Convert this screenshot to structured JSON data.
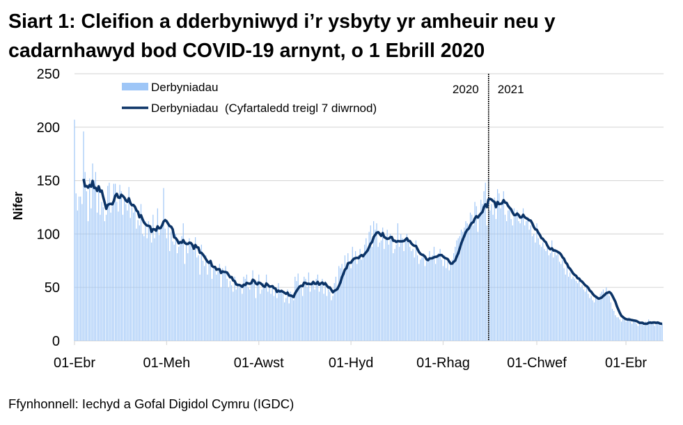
{
  "title_line1": "Siart 1: Cleifion a dderbyniwyd i’r ysbyty yr amheuir neu y",
  "title_line2": "cadarnhawyd bod COVID-19 arnynt, o 1 Ebrill 2020",
  "source": "Ffynhonnell: Iechyd a Gofal Digidol Cymru (IGDC)",
  "colors": {
    "bars": "#9ec6f7",
    "line": "#0b3366",
    "grid": "#d9d9d9",
    "divider": "#000000"
  },
  "chart_data": {
    "type": "bar+line",
    "ylabel": "Nifer",
    "xlabel": "",
    "ylim": [
      0,
      250
    ],
    "y_ticks": [
      0,
      50,
      100,
      150,
      200,
      250
    ],
    "grid": true,
    "legend_position": "top-left",
    "x_start": "2020-04-01",
    "frequency": "daily",
    "x_ticks": [
      {
        "date": "2020-04-01",
        "label": "01-Ebr"
      },
      {
        "date": "2020-06-01",
        "label": "01-Meh"
      },
      {
        "date": "2020-08-01",
        "label": "01-Awst"
      },
      {
        "date": "2020-10-01",
        "label": "01-Hyd"
      },
      {
        "date": "2020-12-01",
        "label": "01-Rhag"
      },
      {
        "date": "2021-02-01",
        "label": "01-Chwef"
      },
      {
        "date": "2021-04-01",
        "label": "01-Ebr"
      }
    ],
    "year_divider": {
      "date": "2021-01-01",
      "left_label": "2020",
      "right_label": "2021"
    },
    "series": [
      {
        "name": "Derbyniadau",
        "type": "bar",
        "values": [
          207,
          138,
          122,
          135,
          135,
          128,
          196,
          158,
          140,
          112,
          152,
          124,
          166,
          150,
          158,
          120,
          142,
          118,
          130,
          125,
          112,
          118,
          145,
          148,
          120,
          126,
          147,
          147,
          130,
          121,
          146,
          140,
          118,
          136,
          128,
          122,
          144,
          115,
          125,
          120,
          124,
          105,
          113,
          108,
          128,
          100,
          98,
          112,
          96,
          112,
          104,
          92,
          118,
          96,
          104,
          124,
          99,
          106,
          110,
          143,
          105,
          96,
          108,
          84,
          102,
          93,
          90,
          100,
          82,
          88,
          92,
          98,
          110,
          72,
          93,
          82,
          96,
          90,
          86,
          84,
          97,
          78,
          80,
          62,
          90,
          75,
          70,
          80,
          62,
          72,
          74,
          58,
          68,
          70,
          62,
          65,
          72,
          50,
          68,
          64,
          70,
          58,
          50,
          56,
          52,
          46,
          60,
          48,
          54,
          50,
          52,
          44,
          60,
          58,
          62,
          50,
          48,
          56,
          66,
          54,
          40,
          56,
          62,
          44,
          48,
          54,
          50,
          62,
          46,
          52,
          44,
          50,
          42,
          47,
          40,
          54,
          46,
          48,
          44,
          36,
          40,
          48,
          35,
          46,
          44,
          38,
          60,
          56,
          63,
          48,
          52,
          42,
          60,
          58,
          50,
          64,
          46,
          52,
          56,
          48,
          58,
          62,
          46,
          54,
          58,
          44,
          56,
          42,
          50,
          46,
          38,
          42,
          54,
          60,
          50,
          70,
          68,
          72,
          66,
          80,
          70,
          82,
          74,
          68,
          88,
          76,
          84,
          72,
          80,
          86,
          76,
          80,
          90,
          96,
          84,
          102,
          108,
          88,
          112,
          104,
          110,
          88,
          92,
          94,
          106,
          86,
          98,
          104,
          90,
          100,
          96,
          82,
          86,
          90,
          110,
          88,
          100,
          96,
          84,
          94,
          100,
          92,
          88,
          84,
          86,
          78,
          94,
          80,
          72,
          76,
          78,
          82,
          70,
          76,
          74,
          84,
          76,
          80,
          88,
          72,
          78,
          82,
          86,
          76,
          70,
          80,
          68,
          74,
          66,
          72,
          76,
          82,
          88,
          94,
          96,
          98,
          104,
          102,
          106,
          112,
          110,
          104,
          120,
          118,
          108,
          130,
          126,
          102,
          118,
          132,
          128,
          140,
          148,
          108,
          152,
          122,
          128,
          118,
          134,
          114,
          142,
          138,
          124,
          130,
          140,
          118,
          112,
          122,
          126,
          114,
          108,
          124,
          118,
          122,
          112,
          110,
          116,
          124,
          108,
          112,
          116,
          104,
          108,
          98,
          100,
          92,
          110,
          96,
          90,
          88,
          92,
          86,
          84,
          88,
          80,
          82,
          94,
          78,
          86,
          80,
          82,
          74,
          72,
          76,
          68,
          62,
          70,
          60,
          64,
          58,
          60,
          58,
          56,
          54,
          58,
          50,
          52,
          48,
          46,
          50,
          44,
          40,
          42,
          38,
          36,
          40,
          42,
          38,
          44,
          46,
          48,
          44,
          50,
          46,
          42,
          36,
          30,
          28,
          24,
          22,
          22,
          20,
          18,
          22,
          20,
          18,
          20,
          22,
          18,
          16,
          20,
          18,
          16,
          14,
          16,
          18,
          16,
          14,
          18,
          16,
          20,
          18,
          16,
          18,
          14,
          16,
          18,
          16,
          14,
          16
        ]
      },
      {
        "name": "Derbyniadau  (Cyfartaledd treigl 7 diwrnod)",
        "type": "line",
        "window_days": 7
      }
    ]
  }
}
